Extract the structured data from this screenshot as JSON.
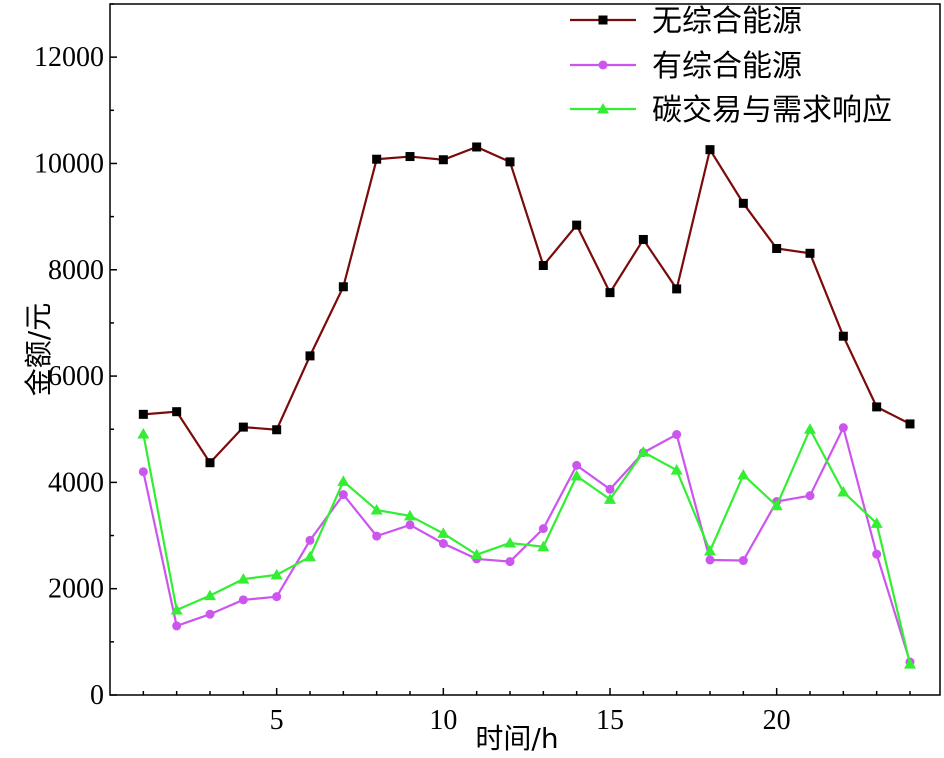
{
  "chart_data": {
    "type": "line",
    "title": "",
    "xlabel": "时间/h",
    "ylabel": "金额/元",
    "xlim": [
      0,
      24.9
    ],
    "ylim": [
      0,
      13000
    ],
    "xticks": [
      5,
      10,
      15,
      20
    ],
    "yticks": [
      0,
      2000,
      4000,
      6000,
      8000,
      10000,
      12000
    ],
    "grid": false,
    "legend_position": "top-right",
    "x": [
      1,
      2,
      3,
      4,
      5,
      6,
      7,
      8,
      9,
      10,
      11,
      12,
      13,
      14,
      15,
      16,
      17,
      18,
      19,
      20,
      21,
      22,
      23,
      24
    ],
    "series": [
      {
        "name": "无综合能源",
        "color": "#7b0b0b",
        "marker": "square",
        "marker_color": "#000000",
        "values": [
          5280,
          5330,
          4370,
          5040,
          4990,
          6380,
          7680,
          10080,
          10130,
          10070,
          10310,
          10030,
          8080,
          8840,
          7570,
          8570,
          7640,
          10260,
          9250,
          8400,
          8310,
          6750,
          5420,
          5100
        ]
      },
      {
        "name": "有综合能源",
        "color": "#cc55ee",
        "marker": "circle",
        "marker_color": "#cc55ee",
        "values": [
          4200,
          1300,
          1520,
          1790,
          1850,
          2910,
          3770,
          2990,
          3200,
          2850,
          2560,
          2510,
          3130,
          4320,
          3870,
          4560,
          4900,
          2540,
          2530,
          3640,
          3750,
          5030,
          2650,
          620
        ]
      },
      {
        "name": "碳交易与需求响应",
        "color": "#33ee33",
        "marker": "triangle",
        "marker_color": "#33ee33",
        "values": [
          4910,
          1600,
          1870,
          2180,
          2260,
          2600,
          4020,
          3480,
          3370,
          3040,
          2640,
          2860,
          2790,
          4120,
          3680,
          4570,
          4230,
          2710,
          4140,
          3560,
          5000,
          3820,
          3230,
          580
        ]
      }
    ]
  }
}
